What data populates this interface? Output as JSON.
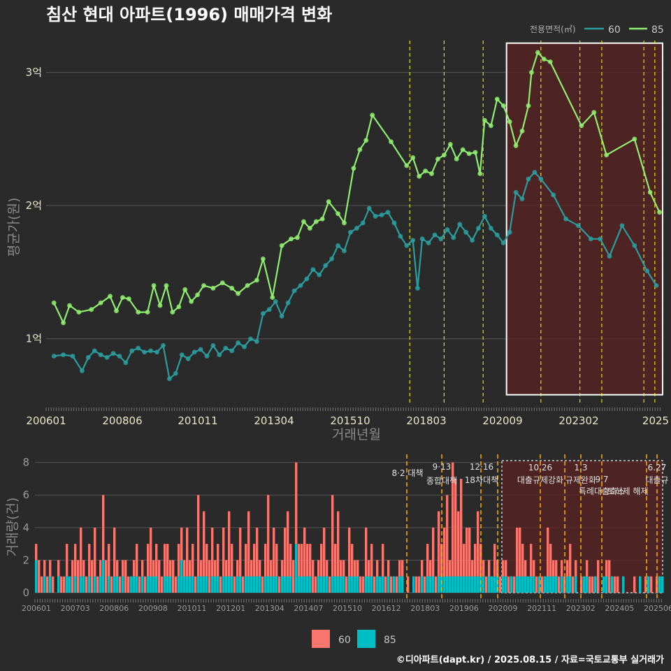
{
  "title": "침산 현대 아파트(1996) 매매가격 변화",
  "credit": "©디아파트(dapt.kr) / 2025.08.15 / 자료=국토교통부 실거래가",
  "colors": {
    "bg": "#2a2a2b",
    "s60_line": "#2a9d9f",
    "s85_line": "#90ee70",
    "bar60": "#f8766d",
    "bar85": "#00bfc4",
    "policy": "#ffff00",
    "grid": "#555555"
  },
  "chart_data": [
    {
      "type": "line",
      "title": "침산 현대 아파트(1996) 매매가격 변화",
      "xlabel": "거래년월",
      "ylabel": "평균가(원)",
      "x_ticks": [
        "200601",
        "200806",
        "201011",
        "201304",
        "201510",
        "201803",
        "202009",
        "202302",
        "2025"
      ],
      "y_ticks": [
        {
          "value": 1,
          "label": "1억"
        },
        {
          "value": 2,
          "label": "2억"
        },
        {
          "value": 3,
          "label": "3억"
        }
      ],
      "ylim": [
        0.5,
        3.25
      ],
      "xlim": [
        2005.95,
        2025.7
      ],
      "legend": {
        "title": "전용면적(㎡)",
        "position": "top-right",
        "entries": [
          "60",
          "85"
        ]
      },
      "policy_lines": [
        2017.6,
        2018.7,
        2019.95,
        2021.8,
        2023.05,
        2023.75,
        2025.1,
        2025.45
      ],
      "highlight": {
        "x_from": 2020.7,
        "x_to": 2025.7,
        "y_from": 0.58,
        "y_to": 3.22
      },
      "series": [
        {
          "name": "60",
          "points": [
            [
              2006.2,
              0.87
            ],
            [
              2006.5,
              0.88
            ],
            [
              2006.8,
              0.87
            ],
            [
              2007.1,
              0.76
            ],
            [
              2007.3,
              0.86
            ],
            [
              2007.5,
              0.91
            ],
            [
              2007.7,
              0.88
            ],
            [
              2007.9,
              0.86
            ],
            [
              2008.1,
              0.89
            ],
            [
              2008.3,
              0.87
            ],
            [
              2008.5,
              0.82
            ],
            [
              2008.7,
              0.91
            ],
            [
              2008.9,
              0.93
            ],
            [
              2009.1,
              0.9
            ],
            [
              2009.3,
              0.91
            ],
            [
              2009.5,
              0.9
            ],
            [
              2009.7,
              0.95
            ],
            [
              2009.9,
              0.7
            ],
            [
              2010.1,
              0.74
            ],
            [
              2010.3,
              0.88
            ],
            [
              2010.5,
              0.85
            ],
            [
              2010.7,
              0.9
            ],
            [
              2010.9,
              0.92
            ],
            [
              2011.1,
              0.87
            ],
            [
              2011.3,
              0.95
            ],
            [
              2011.5,
              0.88
            ],
            [
              2011.7,
              0.93
            ],
            [
              2011.9,
              0.91
            ],
            [
              2012.1,
              0.97
            ],
            [
              2012.3,
              0.94
            ],
            [
              2012.5,
              1.0
            ],
            [
              2012.7,
              0.98
            ],
            [
              2012.9,
              1.19
            ],
            [
              2013.1,
              1.22
            ],
            [
              2013.3,
              1.28
            ],
            [
              2013.5,
              1.17
            ],
            [
              2013.7,
              1.27
            ],
            [
              2013.9,
              1.36
            ],
            [
              2014.1,
              1.4
            ],
            [
              2014.3,
              1.45
            ],
            [
              2014.5,
              1.52
            ],
            [
              2014.7,
              1.48
            ],
            [
              2014.9,
              1.55
            ],
            [
              2015.1,
              1.6
            ],
            [
              2015.3,
              1.7
            ],
            [
              2015.5,
              1.66
            ],
            [
              2015.7,
              1.8
            ],
            [
              2015.9,
              1.83
            ],
            [
              2016.1,
              1.87
            ],
            [
              2016.3,
              1.98
            ],
            [
              2016.5,
              1.92
            ],
            [
              2016.7,
              1.93
            ],
            [
              2016.9,
              1.95
            ],
            [
              2017.1,
              1.87
            ],
            [
              2017.3,
              1.77
            ],
            [
              2017.5,
              1.7
            ],
            [
              2017.7,
              1.74
            ],
            [
              2017.85,
              1.38
            ],
            [
              2018.0,
              1.75
            ],
            [
              2018.2,
              1.72
            ],
            [
              2018.4,
              1.78
            ],
            [
              2018.6,
              1.75
            ],
            [
              2018.8,
              1.82
            ],
            [
              2019.0,
              1.76
            ],
            [
              2019.2,
              1.86
            ],
            [
              2019.4,
              1.8
            ],
            [
              2019.6,
              1.74
            ],
            [
              2019.8,
              1.83
            ],
            [
              2020.0,
              1.92
            ],
            [
              2020.2,
              1.83
            ],
            [
              2020.4,
              1.78
            ],
            [
              2020.6,
              1.72
            ],
            [
              2020.8,
              1.8
            ],
            [
              2021.0,
              2.1
            ],
            [
              2021.2,
              2.05
            ],
            [
              2021.4,
              2.2
            ],
            [
              2021.6,
              2.25
            ],
            [
              2021.8,
              2.2
            ],
            [
              2022.2,
              2.08
            ],
            [
              2022.6,
              1.9
            ],
            [
              2023.0,
              1.85
            ],
            [
              2023.4,
              1.75
            ],
            [
              2023.7,
              1.75
            ],
            [
              2024.0,
              1.62
            ],
            [
              2024.4,
              1.85
            ],
            [
              2024.8,
              1.7
            ],
            [
              2025.2,
              1.51
            ],
            [
              2025.5,
              1.4
            ]
          ]
        },
        {
          "name": "85",
          "points": [
            [
              2006.2,
              1.27
            ],
            [
              2006.5,
              1.12
            ],
            [
              2006.7,
              1.25
            ],
            [
              2007.0,
              1.2
            ],
            [
              2007.4,
              1.22
            ],
            [
              2007.7,
              1.27
            ],
            [
              2008.0,
              1.32
            ],
            [
              2008.2,
              1.21
            ],
            [
              2008.4,
              1.31
            ],
            [
              2008.6,
              1.3
            ],
            [
              2008.9,
              1.2
            ],
            [
              2009.2,
              1.2
            ],
            [
              2009.4,
              1.4
            ],
            [
              2009.6,
              1.25
            ],
            [
              2009.8,
              1.4
            ],
            [
              2010.0,
              1.2
            ],
            [
              2010.2,
              1.24
            ],
            [
              2010.4,
              1.37
            ],
            [
              2010.6,
              1.28
            ],
            [
              2010.8,
              1.33
            ],
            [
              2011.0,
              1.4
            ],
            [
              2011.3,
              1.38
            ],
            [
              2011.6,
              1.42
            ],
            [
              2011.9,
              1.38
            ],
            [
              2012.1,
              1.34
            ],
            [
              2012.4,
              1.4
            ],
            [
              2012.7,
              1.44
            ],
            [
              2012.9,
              1.6
            ],
            [
              2013.2,
              1.31
            ],
            [
              2013.5,
              1.7
            ],
            [
              2013.8,
              1.75
            ],
            [
              2014.0,
              1.76
            ],
            [
              2014.2,
              1.88
            ],
            [
              2014.4,
              1.83
            ],
            [
              2014.6,
              1.88
            ],
            [
              2014.8,
              1.9
            ],
            [
              2015.0,
              2.03
            ],
            [
              2015.3,
              1.94
            ],
            [
              2015.5,
              1.87
            ],
            [
              2015.8,
              2.28
            ],
            [
              2016.0,
              2.42
            ],
            [
              2016.2,
              2.49
            ],
            [
              2016.4,
              2.68
            ],
            [
              2017.0,
              2.48
            ],
            [
              2017.5,
              2.3
            ],
            [
              2017.7,
              2.36
            ],
            [
              2017.9,
              2.22
            ],
            [
              2018.1,
              2.26
            ],
            [
              2018.3,
              2.24
            ],
            [
              2018.5,
              2.35
            ],
            [
              2018.7,
              2.38
            ],
            [
              2018.9,
              2.46
            ],
            [
              2019.1,
              2.35
            ],
            [
              2019.3,
              2.42
            ],
            [
              2019.5,
              2.39
            ],
            [
              2019.7,
              2.4
            ],
            [
              2019.85,
              2.24
            ],
            [
              2020.0,
              2.64
            ],
            [
              2020.2,
              2.6
            ],
            [
              2020.4,
              2.8
            ],
            [
              2020.6,
              2.75
            ],
            [
              2020.8,
              2.63
            ],
            [
              2021.0,
              2.45
            ],
            [
              2021.2,
              2.56
            ],
            [
              2021.4,
              2.75
            ],
            [
              2021.5,
              3.0
            ],
            [
              2021.7,
              3.15
            ],
            [
              2021.9,
              3.1
            ],
            [
              2022.1,
              3.08
            ],
            [
              2023.1,
              2.6
            ],
            [
              2023.5,
              2.7
            ],
            [
              2023.9,
              2.38
            ],
            [
              2024.8,
              2.5
            ],
            [
              2025.3,
              2.1
            ],
            [
              2025.6,
              1.95
            ]
          ]
        }
      ]
    },
    {
      "type": "bar",
      "xlabel": "",
      "ylabel": "거래량(건)",
      "stacked": true,
      "y_ticks": [
        0,
        2,
        4,
        6,
        8
      ],
      "ylim": [
        0,
        8.2
      ],
      "x_ticks": [
        "200601",
        "200703",
        "200806",
        "200908",
        "201011",
        "201201",
        "201304",
        "201407",
        "201510",
        "201612",
        "201803",
        "201906",
        "202009",
        "202111",
        "202302",
        "202405",
        "202506"
      ],
      "legend": {
        "position": "bottom",
        "entries": [
          "60",
          "85"
        ]
      },
      "annotations": [
        {
          "x": 2017.6,
          "line1": "8·2 대책",
          "line2": ""
        },
        {
          "x": 2018.7,
          "line1": "9·13",
          "line2": "종합대책"
        },
        {
          "x": 2019.95,
          "line1": "12·16",
          "line2": "18차대책"
        },
        {
          "x": 2021.8,
          "line1": "10.26",
          "line2": "대출규제강화"
        },
        {
          "x": 2023.05,
          "line1": "1.3",
          "line2": "규제완화"
        },
        {
          "x": 2023.75,
          "line1": "9.7",
          "line2": "특례대출축소"
        },
        {
          "x": 2025.1,
          "line1": "",
          "line2": "토허제 해제"
        },
        {
          "x": 2025.45,
          "line1": "6.27",
          "line2": "대출규"
        }
      ],
      "counts60": [
        3,
        2,
        1,
        2,
        1,
        2,
        1,
        0,
        2,
        1,
        1,
        3,
        1,
        2,
        3,
        2,
        4,
        2,
        1,
        3,
        2,
        4,
        1,
        2,
        6,
        2,
        3,
        1,
        4,
        2,
        1,
        2,
        2,
        1,
        1,
        2,
        3,
        1,
        2,
        1,
        3,
        4,
        2,
        3,
        2,
        1,
        3,
        3,
        2,
        2,
        1,
        3,
        4,
        2,
        4,
        2,
        3,
        1,
        6,
        2,
        5,
        3,
        2,
        4,
        2,
        3,
        1,
        4,
        2,
        5,
        3,
        1,
        2,
        4,
        1,
        3,
        5,
        2,
        3,
        4,
        2,
        1,
        3,
        6,
        2,
        4,
        3,
        1,
        2,
        4,
        5,
        3,
        2,
        8,
        3,
        3,
        4,
        3,
        3,
        2,
        1,
        2,
        3,
        4,
        2,
        1,
        6,
        3,
        5,
        2,
        2,
        1,
        4,
        3,
        2,
        2,
        1,
        1,
        4,
        2,
        3,
        1,
        2,
        1,
        3,
        1,
        2,
        1,
        1,
        1,
        2,
        2,
        0,
        1,
        0,
        1,
        1,
        1,
        2,
        1,
        3,
        2,
        4,
        1,
        5,
        3,
        4,
        6,
        2,
        8,
        7,
        5,
        7,
        3,
        4,
        4,
        2,
        3,
        5,
        3,
        2,
        1,
        2,
        1,
        3,
        2,
        1,
        2,
        2,
        1,
        1,
        1,
        4,
        4,
        3,
        2,
        1,
        3,
        2,
        1,
        1,
        1,
        1,
        4,
        3,
        2,
        2,
        1,
        2,
        1,
        2,
        3,
        1,
        2,
        0,
        1,
        1,
        2,
        1,
        1,
        1,
        2,
        0,
        1,
        2,
        2,
        1,
        1,
        1,
        0,
        1,
        0,
        0,
        0,
        1,
        0,
        1,
        0,
        1,
        1,
        1,
        0,
        1,
        1,
        1
      ],
      "counts85": [
        2,
        0,
        0,
        1,
        0,
        1,
        0,
        0,
        1,
        0,
        0,
        1,
        1,
        0,
        1,
        0,
        1,
        1,
        0,
        1,
        0,
        1,
        0,
        1,
        2,
        0,
        1,
        0,
        1,
        1,
        0,
        1,
        0,
        0,
        1,
        1,
        1,
        0,
        1,
        0,
        1,
        1,
        1,
        1,
        0,
        0,
        1,
        1,
        1,
        0,
        0,
        1,
        2,
        1,
        1,
        1,
        1,
        0,
        1,
        1,
        1,
        1,
        0,
        1,
        1,
        1,
        0,
        1,
        1,
        1,
        1,
        0,
        1,
        1,
        0,
        1,
        1,
        1,
        1,
        1,
        1,
        0,
        1,
        1,
        1,
        1,
        1,
        0,
        1,
        1,
        1,
        1,
        0,
        3,
        1,
        1,
        1,
        1,
        1,
        0,
        0,
        1,
        1,
        1,
        1,
        0,
        1,
        1,
        1,
        1,
        1,
        0,
        1,
        1,
        1,
        1,
        0,
        0,
        1,
        1,
        1,
        0,
        1,
        1,
        1,
        0,
        1,
        0,
        1,
        0,
        1,
        1,
        0,
        0,
        0,
        1,
        0,
        0,
        1,
        0,
        1,
        1,
        1,
        0,
        1,
        1,
        1,
        1,
        1,
        1,
        1,
        1,
        1,
        1,
        1,
        1,
        1,
        1,
        1,
        1,
        1,
        0,
        1,
        1,
        1,
        1,
        0,
        1,
        1,
        0,
        1,
        0,
        1,
        1,
        1,
        1,
        1,
        1,
        1,
        0,
        1,
        0,
        1,
        1,
        1,
        1,
        1,
        0,
        1,
        0,
        1,
        1,
        0,
        1,
        0,
        0,
        1,
        1,
        0,
        0,
        1,
        0,
        0,
        1,
        1,
        0,
        1,
        0,
        0,
        0,
        1,
        0,
        0,
        0,
        0,
        0,
        1,
        0,
        0,
        1,
        0,
        0,
        0,
        1,
        1
      ]
    }
  ]
}
